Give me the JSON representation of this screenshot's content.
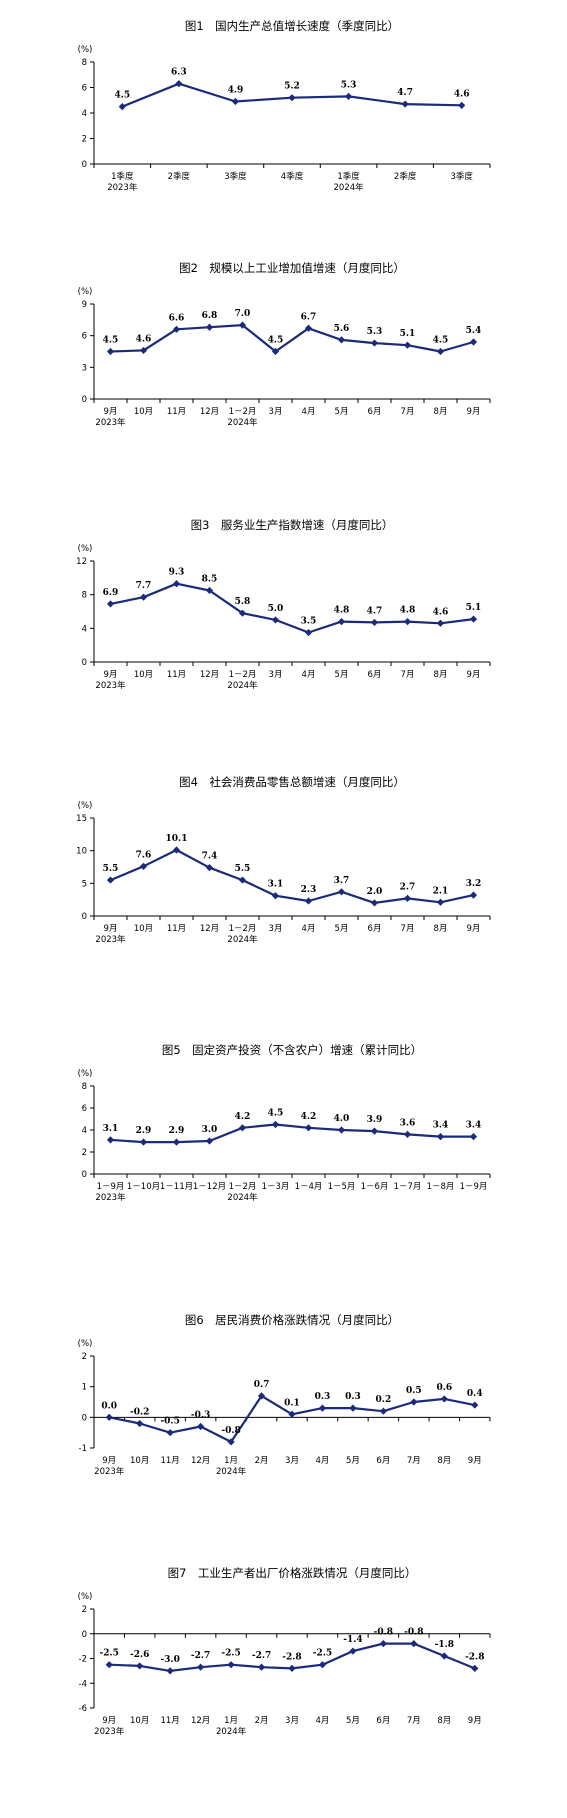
{
  "charts": [
    {
      "title": "图1　国内生产总值增长速度（季度同比）",
      "unit": "(%)",
      "chart_data": {
        "type": "line",
        "title": "图1　国内生产总值增长速度（季度同比）",
        "ylabel": "(%)",
        "ylim": [
          0,
          8
        ],
        "yticks": [
          "0",
          "2",
          "4",
          "6",
          "8"
        ],
        "categories": [
          "1季度",
          "2季度",
          "3季度",
          "4季度",
          "1季度",
          "2季度",
          "3季度"
        ],
        "years": [
          {
            "at": 0,
            "label": "2023年"
          },
          {
            "at": 4,
            "label": "2024年"
          }
        ],
        "values": [
          4.5,
          6.3,
          4.9,
          5.2,
          5.3,
          4.7,
          4.6
        ],
        "data_labels": [
          "4.5",
          "6.3",
          "4.9",
          "5.2",
          "5.3",
          "4.7",
          "4.6"
        ],
        "color": "#1c2a7a"
      }
    },
    {
      "title": "图2　规模以上工业增加值增速（月度同比）",
      "unit": "(%)",
      "chart_data": {
        "type": "line",
        "title": "图2　规模以上工业增加值增速（月度同比）",
        "ylabel": "(%)",
        "ylim": [
          0,
          9
        ],
        "yticks": [
          "0",
          "3",
          "6",
          "9"
        ],
        "categories": [
          "9月",
          "10月",
          "11月",
          "12月",
          "1－2月",
          "3月",
          "4月",
          "5月",
          "6月",
          "7月",
          "8月",
          "9月"
        ],
        "years": [
          {
            "at": 0,
            "label": "2023年"
          },
          {
            "at": 4,
            "label": "2024年"
          }
        ],
        "values": [
          4.5,
          4.6,
          6.6,
          6.8,
          7.0,
          4.5,
          6.7,
          5.6,
          5.3,
          5.1,
          4.5,
          5.4
        ],
        "data_labels": [
          "4.5",
          "4.6",
          "6.6",
          "6.8",
          "7.0",
          "4.5",
          "6.7",
          "5.6",
          "5.3",
          "5.1",
          "4.5",
          "5.4"
        ],
        "color": "#1c2a7a"
      }
    },
    {
      "title": "图3　服务业生产指数增速（月度同比）",
      "unit": "(%)",
      "chart_data": {
        "type": "line",
        "title": "图3　服务业生产指数增速（月度同比）",
        "ylabel": "(%)",
        "ylim": [
          0,
          12
        ],
        "yticks": [
          "0",
          "4",
          "8",
          "12"
        ],
        "categories": [
          "9月",
          "10月",
          "11月",
          "12月",
          "1－2月",
          "3月",
          "4月",
          "5月",
          "6月",
          "7月",
          "8月",
          "9月"
        ],
        "years": [
          {
            "at": 0,
            "label": "2023年"
          },
          {
            "at": 4,
            "label": "2024年"
          }
        ],
        "values": [
          6.9,
          7.7,
          9.3,
          8.5,
          5.8,
          5.0,
          3.5,
          4.8,
          4.7,
          4.8,
          4.6,
          5.1
        ],
        "data_labels": [
          "6.9",
          "7.7",
          "9.3",
          "8.5",
          "5.8",
          "5.0",
          "3.5",
          "4.8",
          "4.7",
          "4.8",
          "4.6",
          "5.1"
        ],
        "color": "#1c2a7a"
      }
    },
    {
      "title": "图4　社会消费品零售总额增速（月度同比）",
      "unit": "(%)",
      "chart_data": {
        "type": "line",
        "title": "图4　社会消费品零售总额增速（月度同比）",
        "ylabel": "(%)",
        "ylim": [
          0,
          15
        ],
        "yticks": [
          "0",
          "5",
          "10",
          "15"
        ],
        "categories": [
          "9月",
          "10月",
          "11月",
          "12月",
          "1－2月",
          "3月",
          "4月",
          "5月",
          "6月",
          "7月",
          "8月",
          "9月"
        ],
        "years": [
          {
            "at": 0,
            "label": "2023年"
          },
          {
            "at": 4,
            "label": "2024年"
          }
        ],
        "values": [
          5.5,
          7.6,
          10.1,
          7.4,
          5.5,
          3.1,
          2.3,
          3.7,
          2.0,
          2.7,
          2.1,
          3.2
        ],
        "data_labels": [
          "5.5",
          "7.6",
          "10.1",
          "7.4",
          "5.5",
          "3.1",
          "2.3",
          "3.7",
          "2.0",
          "2.7",
          "2.1",
          "3.2"
        ],
        "color": "#1c2a7a"
      }
    },
    {
      "title": "图5　固定资产投资（不含农户）增速（累计同比）",
      "unit": "(%)",
      "chart_data": {
        "type": "line",
        "title": "图5　固定资产投资（不含农户）增速（累计同比）",
        "ylabel": "(%)",
        "ylim": [
          0,
          8
        ],
        "yticks": [
          "0",
          "2",
          "4",
          "6",
          "8"
        ],
        "categories": [
          "1－9月",
          "1－10月",
          "1－11月",
          "1－12月",
          "1－2月",
          "1－3月",
          "1－4月",
          "1－5月",
          "1－6月",
          "1－7月",
          "1－8月",
          "1－9月"
        ],
        "years": [
          {
            "at": 0,
            "label": "2023年"
          },
          {
            "at": 4,
            "label": "2024年"
          }
        ],
        "values": [
          3.1,
          2.9,
          2.9,
          3.0,
          4.2,
          4.5,
          4.2,
          4.0,
          3.9,
          3.6,
          3.4,
          3.4
        ],
        "data_labels": [
          "3.1",
          "2.9",
          "2.9",
          "3.0",
          "4.2",
          "4.5",
          "4.2",
          "4.0",
          "3.9",
          "3.6",
          "3.4",
          "3.4"
        ],
        "color": "#1c2a7a"
      }
    },
    {
      "title": "图6　居民消费价格涨跌情况（月度同比）",
      "unit": "(%)",
      "chart_data": {
        "type": "line",
        "title": "图6　居民消费价格涨跌情况（月度同比）",
        "ylabel": "(%)",
        "ylim": [
          -1,
          2
        ],
        "yticks": [
          "-1",
          "0",
          "1",
          "2"
        ],
        "categories": [
          "9月",
          "10月",
          "11月",
          "12月",
          "1月",
          "2月",
          "3月",
          "4月",
          "5月",
          "6月",
          "7月",
          "8月",
          "9月"
        ],
        "years": [
          {
            "at": 0,
            "label": "2023年"
          },
          {
            "at": 4,
            "label": "2024年"
          }
        ],
        "values": [
          0.0,
          -0.2,
          -0.5,
          -0.3,
          -0.8,
          0.7,
          0.1,
          0.3,
          0.3,
          0.2,
          0.5,
          0.6,
          0.4
        ],
        "data_labels": [
          "0.0",
          "-0.2",
          "-0.5",
          "-0.3",
          "-0.8",
          "0.7",
          "0.1",
          "0.3",
          "0.3",
          "0.2",
          "0.5",
          "0.6",
          "0.4"
        ],
        "color": "#1c2a7a"
      }
    },
    {
      "title": "图7　工业生产者出厂价格涨跌情况（月度同比）",
      "unit": "(%)",
      "chart_data": {
        "type": "line",
        "title": "图7　工业生产者出厂价格涨跌情况（月度同比）",
        "ylabel": "(%)",
        "ylim": [
          -6,
          2
        ],
        "yticks": [
          "-6",
          "-4",
          "-2",
          "0",
          "2"
        ],
        "categories": [
          "9月",
          "10月",
          "11月",
          "12月",
          "1月",
          "2月",
          "3月",
          "4月",
          "5月",
          "6月",
          "7月",
          "8月",
          "9月"
        ],
        "years": [
          {
            "at": 0,
            "label": "2023年"
          },
          {
            "at": 4,
            "label": "2024年"
          }
        ],
        "values": [
          -2.5,
          -2.6,
          -3.0,
          -2.7,
          -2.5,
          -2.7,
          -2.8,
          -2.5,
          -1.4,
          -0.8,
          -0.8,
          -1.8,
          -2.8
        ],
        "data_labels": [
          "-2.5",
          "-2.6",
          "-3.0",
          "-2.7",
          "-2.5",
          "-2.7",
          "-2.8",
          "-2.5",
          "-1.4",
          "-0.8",
          "-0.8",
          "-1.8",
          "-2.8"
        ],
        "color": "#1c2a7a"
      }
    }
  ]
}
